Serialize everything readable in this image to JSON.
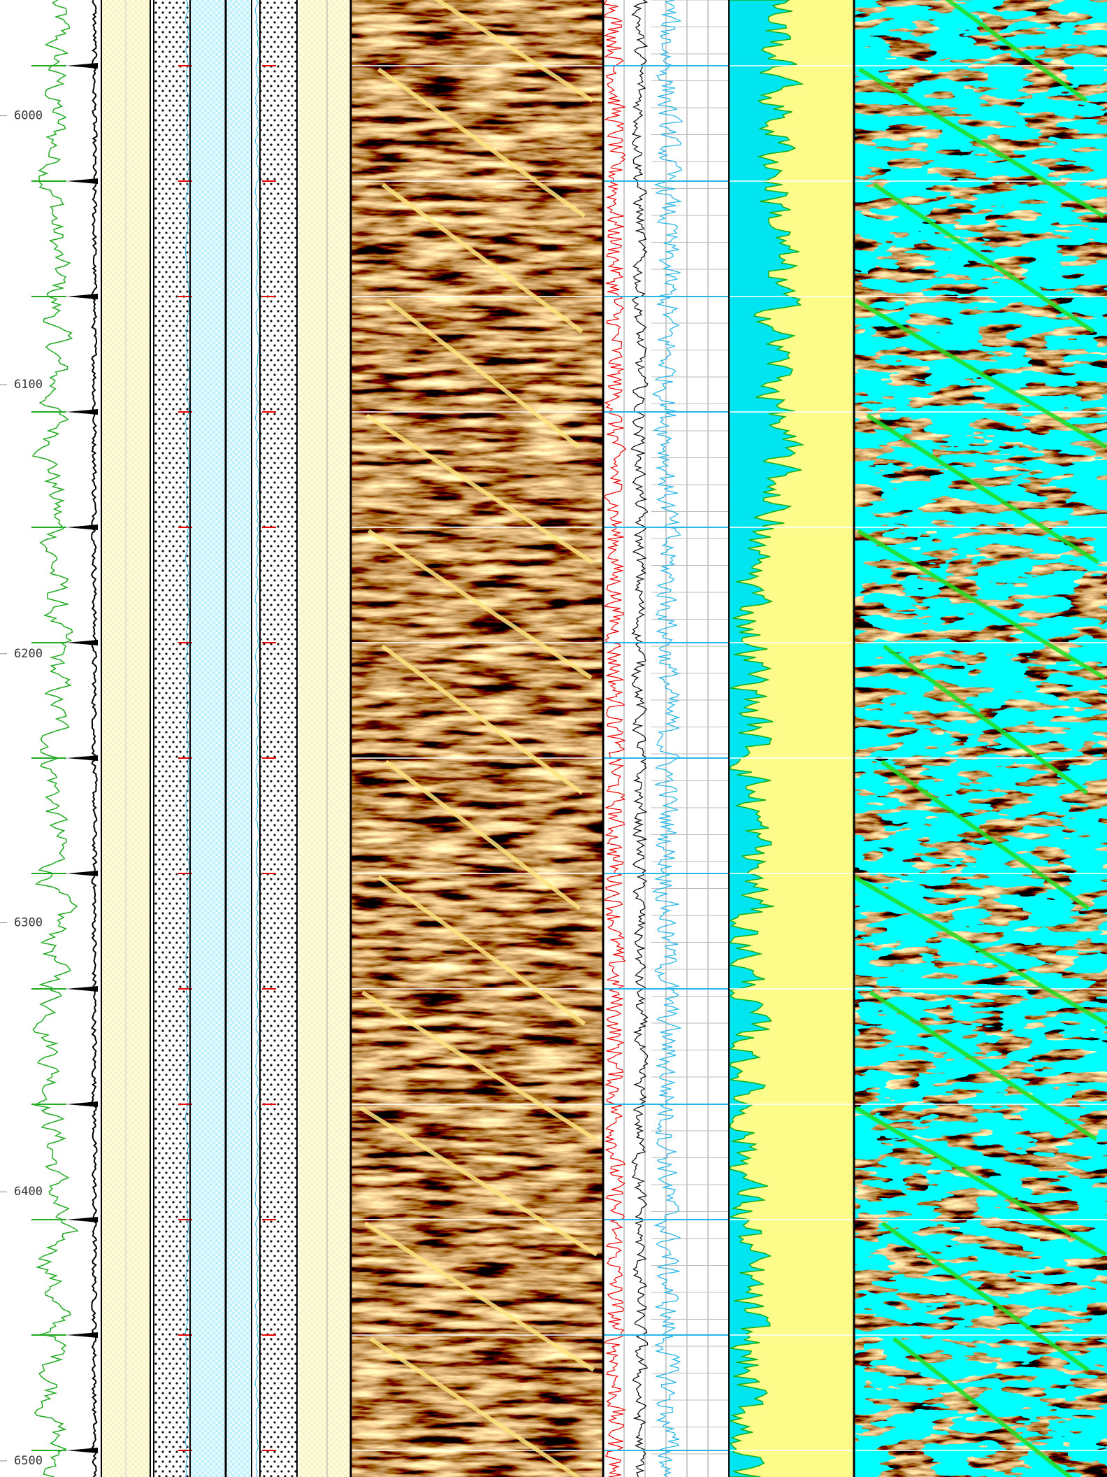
{
  "chart_data": {
    "type": "well-log",
    "ylim": [
      5957,
      6506
    ],
    "yticks": [
      6000,
      6100,
      6200,
      6300,
      6400,
      6500
    ]
  }
}
